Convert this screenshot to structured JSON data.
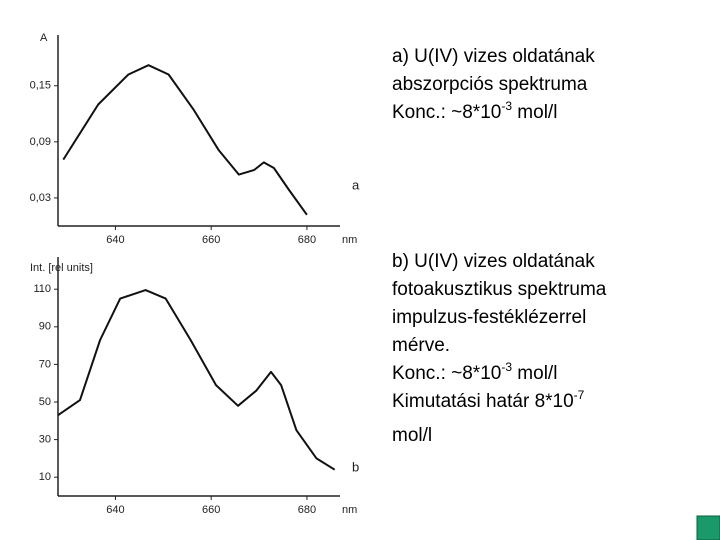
{
  "chart_data": [
    {
      "type": "line",
      "y_label": "A",
      "x_unit": "nm",
      "panel_label": "a",
      "x": [
        629.1,
        636.4,
        642.7,
        646.9,
        651.1,
        656.4,
        661.6,
        665.8,
        669,
        671,
        673.1,
        676.2,
        680
      ],
      "values": [
        0.071,
        0.13,
        0.162,
        0.172,
        0.162,
        0.124,
        0.081,
        0.055,
        0.06,
        0.068,
        0.062,
        0.039,
        0.012
      ],
      "xlim": [
        628,
        689
      ],
      "ylim": [
        0,
        0.2
      ],
      "xticks": [
        640,
        660,
        680
      ],
      "yticks": [
        {
          "value": 0.15,
          "label": "0,15"
        },
        {
          "value": 0.09,
          "label": "0,09"
        },
        {
          "value": 0.03,
          "label": "0,03"
        }
      ],
      "color": "#111"
    },
    {
      "type": "line",
      "y_label": "Int. [rel units]",
      "x_unit": "nm",
      "panel_label": "b",
      "x": [
        628,
        632.6,
        636.8,
        641,
        646.3,
        650.5,
        655.7,
        661,
        665.6,
        669.4,
        672.5,
        674.6,
        677.8,
        682,
        685.8
      ],
      "values": [
        43,
        51,
        83,
        105,
        109.5,
        105,
        83,
        59,
        48,
        56,
        66,
        59,
        35,
        20,
        14
      ],
      "xlim": [
        628,
        689
      ],
      "ylim": [
        0,
        125
      ],
      "xticks": [
        640,
        660,
        680
      ],
      "yticks": [
        110,
        90,
        70,
        50,
        30,
        10
      ],
      "color": "#111"
    }
  ],
  "text_a": {
    "lines": [
      "a) U(IV) vizes oldatának",
      "abszorpciós spektruma"
    ],
    "conc": {
      "text": "Konc.: ~8*10",
      "sup": "-3",
      "after": " mol/l"
    }
  },
  "text_b": {
    "lines": [
      "b) U(IV) vizes oldatának",
      "fotoakusztikus spektruma",
      "impulzus-festéklézerrel",
      "mérve."
    ],
    "conc": {
      "text": "Konc.: ~8*10",
      "sup": "-3",
      "after": " mol/l"
    },
    "limit": {
      "text": "Kimutatási határ 8*10",
      "sup": "-7"
    },
    "last": "mol/l"
  }
}
